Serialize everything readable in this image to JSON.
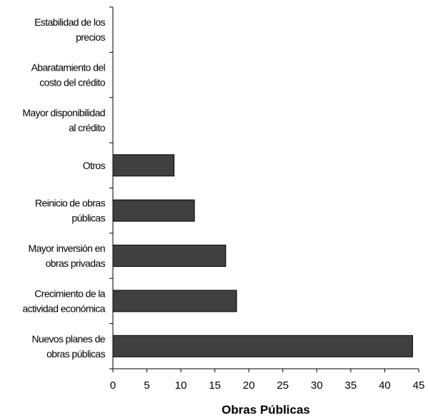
{
  "chart_data": {
    "type": "bar",
    "orientation": "horizontal",
    "title": "",
    "xlabel": "Obras Públicas",
    "ylabel": "",
    "categories": [
      [
        "Estabilidad de los",
        "precios"
      ],
      [
        "Abaratamiento del",
        "costo del crédito"
      ],
      [
        "Mayor disponibilidad",
        "al crédito"
      ],
      [
        "Otros"
      ],
      [
        "Reinicio de obras",
        "públicas"
      ],
      [
        "Mayor inversión en",
        "obras privadas"
      ],
      [
        "Crecimiento de la",
        "actividad económica"
      ],
      [
        "Nuevos planes de",
        "obras públicas"
      ]
    ],
    "values": [
      0,
      0,
      0,
      9,
      12,
      16.6,
      18.2,
      44.1
    ],
    "xlim": [
      0,
      45
    ],
    "xticks": [
      "0",
      "5",
      "10",
      "15",
      "20",
      "25",
      "30",
      "35",
      "40",
      "45"
    ],
    "grid": false,
    "legend": "none",
    "bar_color": "#404040",
    "bar_stroke": "#000000"
  }
}
